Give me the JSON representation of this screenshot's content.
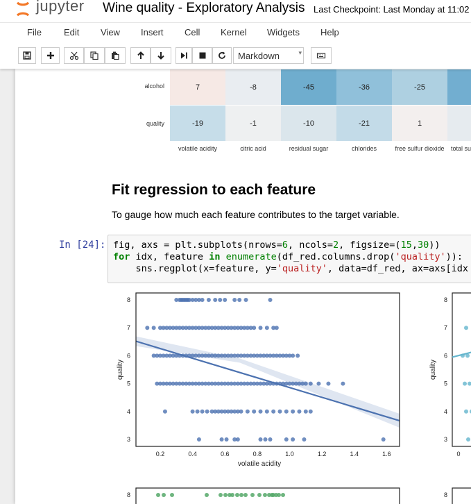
{
  "header": {
    "logo_text": "jupyter",
    "notebook_title": "Wine quality - Exploratory Analysis",
    "checkpoint": "Last Checkpoint: Last Monday at 11:02"
  },
  "menu": [
    "File",
    "Edit",
    "View",
    "Insert",
    "Cell",
    "Kernel",
    "Widgets",
    "Help"
  ],
  "toolbar": {
    "buttons": [
      "save-icon",
      "plus-icon",
      "scissors-icon",
      "copy-icon",
      "paste-icon",
      "arrow-up-icon",
      "arrow-down-icon",
      "run-icon",
      "stop-icon",
      "restart-icon",
      "keyboard-icon"
    ],
    "cell_type": "Markdown"
  },
  "heatmap": {
    "rows": [
      {
        "label": "alcohol",
        "values": [
          "7",
          "-8",
          "-45",
          "-36",
          "-25",
          ""
        ]
      },
      {
        "label": "quality",
        "values": [
          "-19",
          "-1",
          "-10",
          "-21",
          "1",
          ""
        ]
      }
    ],
    "columns": [
      "volatile acidity",
      "citric acid",
      "residual sugar",
      "chlorides",
      "free sulfur dioxide",
      "total su"
    ]
  },
  "markdown": {
    "heading": "Fit regression to each feature",
    "paragraph": "To gauge how much each feature contributes to the target variable."
  },
  "code_cell": {
    "prompt": "In [24]:",
    "lines": [
      "fig, axs = plt.subplots(nrows=6, ncols=2, figsize=(15,30))",
      "for idx, feature in enumerate(df_red.columns.drop('quality')):",
      "    sns.regplot(x=feature, y='quality', data=df_red, ax=axs[idx %"
    ]
  },
  "chart_data": [
    {
      "type": "scatter",
      "xlabel": "volatile acidity",
      "ylabel": "quality",
      "xticks": [
        "0.2",
        "0.4",
        "0.6",
        "0.8",
        "1.0",
        "1.2",
        "1.4",
        "1.6"
      ],
      "yticks": [
        "3",
        "4",
        "5",
        "6",
        "7",
        "8"
      ],
      "xlim": [
        0.05,
        1.68
      ],
      "ylim": [
        2.75,
        8.25
      ],
      "color": "#4c72b0",
      "regression": {
        "x": [
          0.05,
          1.68
        ],
        "y": [
          6.52,
          3.67
        ]
      },
      "points": {
        "8": [
          0.3,
          0.32,
          0.33,
          0.34,
          0.35,
          0.36,
          0.37,
          0.38,
          0.4,
          0.42,
          0.44,
          0.46,
          0.5,
          0.54,
          0.57,
          0.6,
          0.66,
          0.69,
          0.73,
          0.88
        ],
        "7": [
          0.12,
          0.16,
          0.2,
          0.22,
          0.24,
          0.26,
          0.28,
          0.3,
          0.32,
          0.34,
          0.36,
          0.38,
          0.4,
          0.42,
          0.44,
          0.46,
          0.48,
          0.5,
          0.52,
          0.54,
          0.56,
          0.58,
          0.6,
          0.62,
          0.64,
          0.66,
          0.68,
          0.7,
          0.72,
          0.74,
          0.76,
          0.78,
          0.82,
          0.86,
          0.9,
          0.92
        ],
        "6": [
          0.16,
          0.18,
          0.2,
          0.22,
          0.24,
          0.26,
          0.28,
          0.3,
          0.32,
          0.34,
          0.36,
          0.38,
          0.4,
          0.42,
          0.44,
          0.46,
          0.48,
          0.5,
          0.52,
          0.54,
          0.56,
          0.58,
          0.6,
          0.62,
          0.64,
          0.66,
          0.68,
          0.7,
          0.72,
          0.74,
          0.76,
          0.78,
          0.8,
          0.82,
          0.84,
          0.86,
          0.88,
          0.9,
          0.92,
          0.94,
          0.96,
          0.98,
          1.0,
          1.02,
          1.05
        ],
        "5": [
          0.18,
          0.2,
          0.22,
          0.24,
          0.26,
          0.28,
          0.3,
          0.32,
          0.34,
          0.36,
          0.38,
          0.4,
          0.42,
          0.44,
          0.46,
          0.48,
          0.5,
          0.52,
          0.54,
          0.56,
          0.58,
          0.6,
          0.62,
          0.64,
          0.66,
          0.68,
          0.7,
          0.72,
          0.74,
          0.76,
          0.78,
          0.8,
          0.82,
          0.84,
          0.86,
          0.88,
          0.9,
          0.92,
          0.94,
          0.96,
          0.98,
          1.0,
          1.02,
          1.04,
          1.06,
          1.08,
          1.1,
          1.13,
          1.18,
          1.24,
          1.33
        ],
        "4": [
          0.23,
          0.4,
          0.43,
          0.46,
          0.49,
          0.52,
          0.54,
          0.56,
          0.58,
          0.6,
          0.62,
          0.64,
          0.66,
          0.68,
          0.7,
          0.74,
          0.78,
          0.82,
          0.86,
          0.9,
          0.94,
          0.98,
          1.02,
          1.06,
          1.1,
          1.13
        ],
        "3": [
          0.44,
          0.58,
          0.61,
          0.66,
          0.68,
          0.82,
          0.85,
          0.88,
          0.98,
          1.02,
          1.09,
          1.58
        ]
      }
    },
    {
      "type": "scatter",
      "ylabel": "quality",
      "xticks": [
        "0"
      ],
      "yticks": [
        "3",
        "4",
        "5",
        "6",
        "7",
        "8"
      ],
      "color": "#64b5cd"
    },
    {
      "type": "scatter",
      "yticks": [
        "8"
      ],
      "color": "#55a868"
    }
  ]
}
